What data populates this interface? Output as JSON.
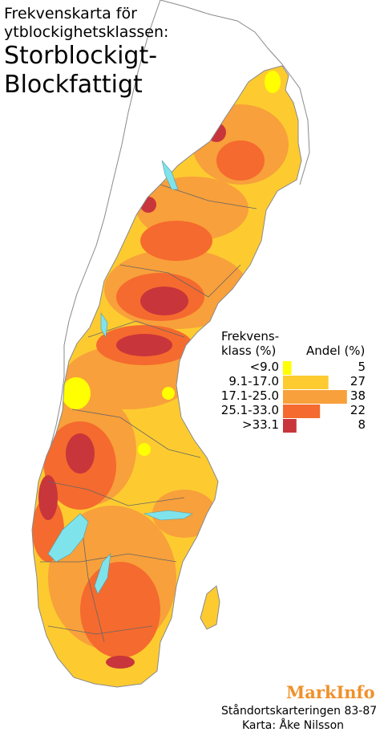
{
  "title": {
    "line1": "Frekvenskarta för",
    "line2": "ytblockighetsklassen:",
    "line3": "Storblockigt-",
    "line4": "Blockfattigt"
  },
  "legend": {
    "header_class_line1": "Frekvens-",
    "header_class_line2": "klass (%)",
    "header_share": "Andel (%)",
    "classes": [
      {
        "label": "<9.0",
        "share": 5,
        "color": "#ffff00"
      },
      {
        "label": "9.1-17.0",
        "share": 27,
        "color": "#fdcb30"
      },
      {
        "label": "17.1-25.0",
        "share": 38,
        "color": "#f8a03b"
      },
      {
        "label": "25.1-33.0",
        "share": 22,
        "color": "#f56a2e"
      },
      {
        "label": ">33.1",
        "share": 8,
        "color": "#c8353b"
      }
    ]
  },
  "colors": {
    "lake": "#7fe3ec",
    "border": "#666666",
    "outline": "#8a8a8a"
  },
  "credits": {
    "brand": "MarkInfo",
    "line1": "Ståndortskarteringen 83-87",
    "line2": "Karta: Åke Nilsson"
  }
}
